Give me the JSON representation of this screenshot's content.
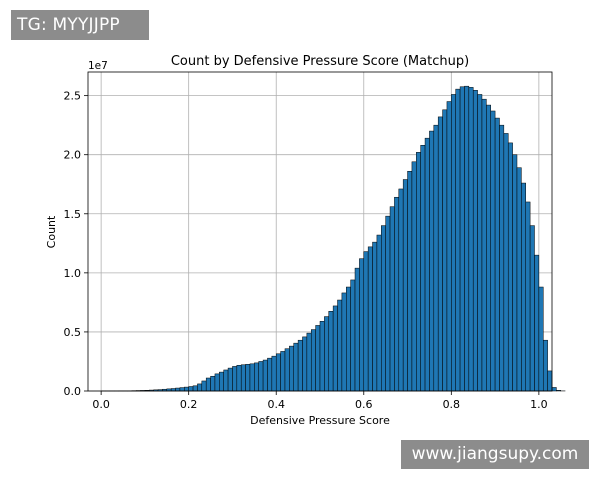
{
  "watermarks": {
    "top_left": "TG: MYYJJPP",
    "bottom_right": "www.jiangsupy.com"
  },
  "chart_data": {
    "type": "bar",
    "title": "Count by Defensive Pressure Score (Matchup)",
    "xlabel": "Defensive Pressure Score",
    "ylabel": "Count",
    "y_offset_label": "1e7",
    "xlim": [
      -0.03,
      1.03
    ],
    "ylim": [
      0,
      2.7
    ],
    "x_ticks": [
      0.0,
      0.2,
      0.4,
      0.6,
      0.8,
      1.0
    ],
    "x_tick_labels": [
      "0.0",
      "0.2",
      "0.4",
      "0.6",
      "0.8",
      "1.0"
    ],
    "y_ticks": [
      0.0,
      0.5,
      1.0,
      1.5,
      2.0,
      2.5
    ],
    "y_tick_labels": [
      "0.0",
      "0.5",
      "1.0",
      "1.5",
      "2.0",
      "2.5"
    ],
    "grid": true,
    "bar_color": "#1f77b4",
    "edge_color": "#000000",
    "bin_width": 0.01,
    "bin_start": 0.0,
    "values": [
      0.001,
      0.001,
      0.001,
      0.001,
      0.002,
      0.002,
      0.002,
      0.003,
      0.004,
      0.005,
      0.006,
      0.008,
      0.01,
      0.012,
      0.015,
      0.018,
      0.021,
      0.025,
      0.029,
      0.033,
      0.038,
      0.044,
      0.06,
      0.085,
      0.11,
      0.125,
      0.145,
      0.16,
      0.178,
      0.194,
      0.208,
      0.218,
      0.222,
      0.226,
      0.23,
      0.238,
      0.25,
      0.262,
      0.278,
      0.295,
      0.315,
      0.335,
      0.358,
      0.38,
      0.405,
      0.43,
      0.458,
      0.49,
      0.52,
      0.555,
      0.59,
      0.63,
      0.675,
      0.72,
      0.77,
      0.83,
      0.88,
      0.94,
      1.04,
      1.12,
      1.18,
      1.22,
      1.26,
      1.32,
      1.4,
      1.48,
      1.56,
      1.64,
      1.71,
      1.79,
      1.86,
      1.94,
      2.02,
      2.08,
      2.14,
      2.2,
      2.25,
      2.32,
      2.38,
      2.45,
      2.51,
      2.555,
      2.575,
      2.58,
      2.57,
      2.545,
      2.51,
      2.47,
      2.42,
      2.37,
      2.31,
      2.25,
      2.18,
      2.1,
      2.0,
      1.89,
      1.76,
      1.6,
      1.4,
      1.15,
      0.88,
      0.43,
      0.17,
      0.03,
      0.006,
      0.001
    ]
  }
}
